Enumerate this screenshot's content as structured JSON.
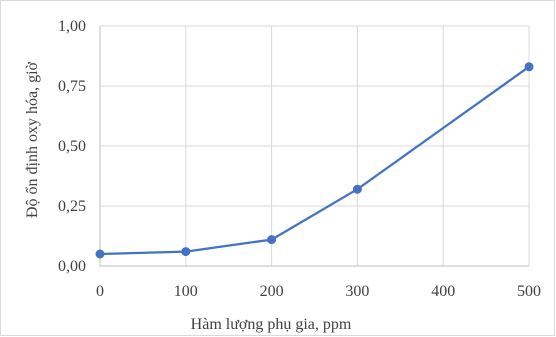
{
  "chart_data": {
    "type": "line",
    "xlabel": "Hàm lượng phụ gia, ppm",
    "ylabel": "Độ ổn định oxy hóa, giờ",
    "xlim": [
      0,
      500
    ],
    "ylim": [
      0,
      1.0
    ],
    "x_ticks": [
      "0",
      "100",
      "200",
      "300",
      "400",
      "500"
    ],
    "y_ticks": [
      "0,00",
      "0,25",
      "0,50",
      "0,75",
      "1,00"
    ],
    "grid": "horizontal",
    "legend": "none",
    "series": [
      {
        "color": "#4472c4",
        "x": [
          0,
          100,
          200,
          300,
          500
        ],
        "y": [
          0.05,
          0.06,
          0.11,
          0.32,
          0.83
        ]
      }
    ]
  }
}
